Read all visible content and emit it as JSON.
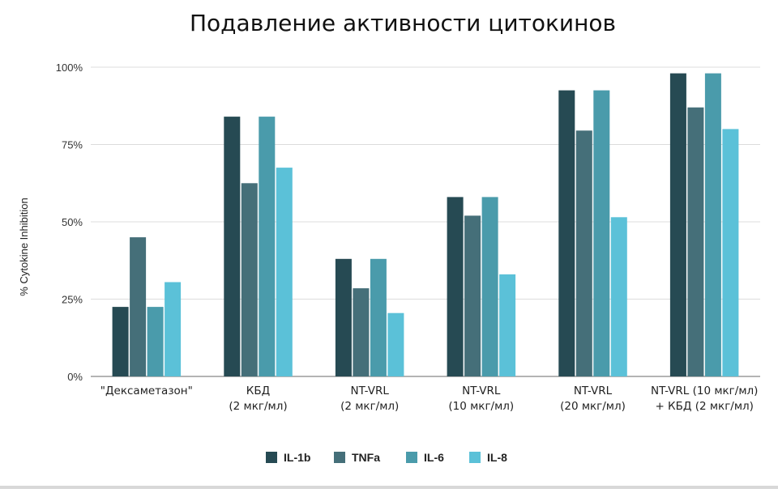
{
  "chart_data": {
    "type": "bar",
    "title": "Подавление активности цитокинов",
    "ylabel": "% Cytokine Inhibition",
    "xlabel": "",
    "ylim": [
      0,
      100
    ],
    "yticks": [
      0,
      25,
      50,
      75,
      100
    ],
    "ytick_labels": [
      "0%",
      "25%",
      "50%",
      "75%",
      "100%"
    ],
    "grid": true,
    "legend_position": "bottom",
    "categories": [
      [
        "\"Дексаметазон\""
      ],
      [
        "КБД",
        "(2 мкг/мл)"
      ],
      [
        "NT-VRL",
        "(2 мкг/мл)"
      ],
      [
        "NT-VRL",
        "(10 мкг/мл)"
      ],
      [
        "NT-VRL",
        "(20 мкг/мл)"
      ],
      [
        "NT-VRL (10 мкг/мл)",
        "+ КБД (2 мкг/мл)"
      ]
    ],
    "series": [
      {
        "name": "IL-1b",
        "color": "#264a53",
        "values": [
          22.5,
          84,
          38,
          58,
          92.5,
          98
        ]
      },
      {
        "name": "TNFa",
        "color": "#456f79",
        "values": [
          45,
          62.5,
          28.5,
          52,
          79.5,
          87
        ]
      },
      {
        "name": "IL-6",
        "color": "#4a9bab",
        "values": [
          22.5,
          84,
          38,
          58,
          92.5,
          98
        ]
      },
      {
        "name": "IL-8",
        "color": "#5bc1d8",
        "values": [
          30.5,
          67.5,
          20.5,
          33,
          51.5,
          80
        ]
      }
    ]
  }
}
